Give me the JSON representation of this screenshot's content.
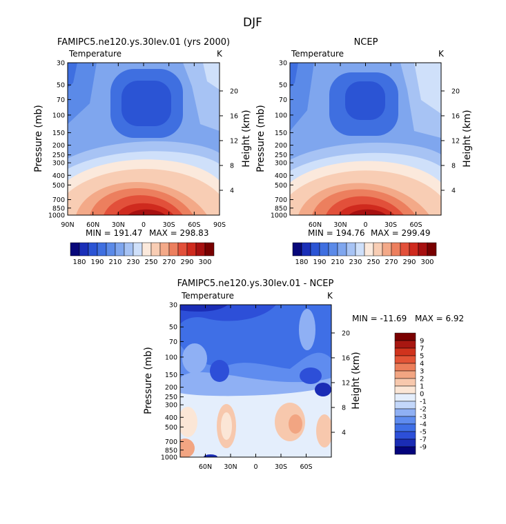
{
  "figure": {
    "season": "DJF"
  },
  "colors": {
    "temp_palette": [
      "#08087a",
      "#1a2fb8",
      "#2b54d4",
      "#3f6fe0",
      "#5b8ae8",
      "#7fa6ee",
      "#a7c3f4",
      "#cfe0fa",
      "#fbe9dc",
      "#f8cdb4",
      "#f3a988",
      "#ec7f5e",
      "#e2503a",
      "#cf2a1e",
      "#a71010",
      "#780000"
    ],
    "diff_palette": [
      "#04047c",
      "#1a2cb5",
      "#2d4fd8",
      "#3f6fe6",
      "#5f8cef",
      "#8fb0f4",
      "#c3d7fa",
      "#e4eefc",
      "#fbe6d6",
      "#f7c8ad",
      "#f2a582",
      "#ec7e5a",
      "#e35436",
      "#d0331d",
      "#a81711",
      "#7a0000"
    ]
  },
  "chart_data": [
    {
      "id": "model",
      "type": "contour",
      "title": "FAMIPC5.ne120.ys.30lev.01 (yrs 2000)",
      "variable": "Temperature",
      "units": "K",
      "ylabel": "Pressure (mb)",
      "ylabel_right": "Height (km)",
      "ylim": [
        1000,
        30
      ],
      "pressure_ticks": [
        "30",
        "50",
        "70",
        "100",
        "150",
        "200",
        "250",
        "300",
        "400",
        "500",
        "700",
        "850",
        "1000"
      ],
      "height_ticks": [
        "20",
        "16",
        "12",
        "8",
        "4"
      ],
      "x_ticks": [
        "90N",
        "60N",
        "30N",
        "0",
        "30S",
        "60S",
        "90S"
      ],
      "min_label": "MIN = 191.47",
      "max_label": "MAX = 298.83",
      "min": 191.47,
      "max": 298.83,
      "colorbar_labels": [
        "180",
        "190",
        "210",
        "230",
        "250",
        "270",
        "290",
        "300"
      ]
    },
    {
      "id": "ncep",
      "type": "contour",
      "title": "NCEP",
      "variable": "Temperature",
      "units": "K",
      "ylabel": "Pressure (mb)",
      "ylabel_right": "Height (km)",
      "ylim": [
        1000,
        30
      ],
      "pressure_ticks": [
        "30",
        "50",
        "70",
        "100",
        "150",
        "200",
        "250",
        "300",
        "400",
        "500",
        "700",
        "850",
        "1000"
      ],
      "height_ticks": [
        "20",
        "16",
        "12",
        "8",
        "4"
      ],
      "x_ticks": [
        "60N",
        "30N",
        "0",
        "30S",
        "60S"
      ],
      "min_label": "MIN = 194.76",
      "max_label": "MAX = 299.49",
      "min": 194.76,
      "max": 299.49,
      "colorbar_labels": [
        "180",
        "190",
        "210",
        "230",
        "250",
        "270",
        "290",
        "300"
      ]
    },
    {
      "id": "diff",
      "type": "contour",
      "title": "FAMIPC5.ne120.ys.30lev.01 - NCEP",
      "variable": "Temperature",
      "units": "K",
      "ylabel": "Pressure (mb)",
      "ylabel_right": "Height (km)",
      "ylim": [
        1000,
        30
      ],
      "pressure_ticks": [
        "30",
        "50",
        "70",
        "100",
        "150",
        "200",
        "250",
        "300",
        "400",
        "500",
        "700",
        "850",
        "1000"
      ],
      "height_ticks": [
        "20",
        "16",
        "12",
        "8",
        "4"
      ],
      "x_ticks": [
        "60N",
        "30N",
        "0",
        "30S",
        "60S"
      ],
      "min_label": "MIN = -11.69",
      "max_label": "MAX =    6.92",
      "min": -11.69,
      "max": 6.92,
      "colorbar_labels": [
        "9",
        "7",
        "5",
        "4",
        "3",
        "2",
        "1",
        "0",
        "-1",
        "-2",
        "-3",
        "-4",
        "-5",
        "-7",
        "-9"
      ]
    }
  ]
}
